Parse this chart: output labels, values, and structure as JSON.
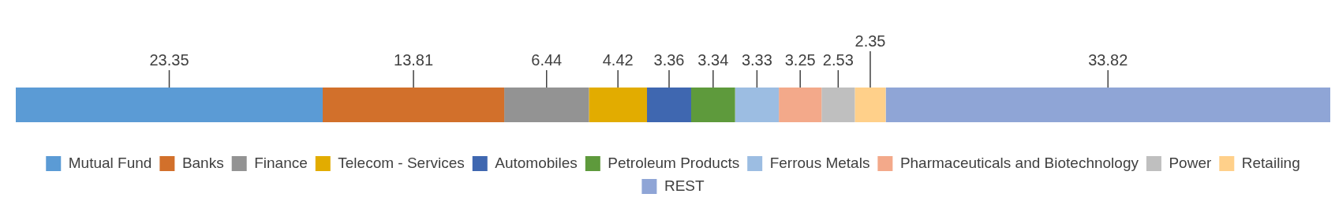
{
  "chart_data": {
    "type": "bar",
    "orientation": "horizontal",
    "stacked": true,
    "data_labels": true,
    "legend": "bottom",
    "categories": [
      null
    ],
    "series": [
      {
        "name": "Mutual Fund",
        "color": "#5b9bd5",
        "values": [
          23.35
        ]
      },
      {
        "name": "Banks",
        "color": "#d2702b",
        "values": [
          13.81
        ]
      },
      {
        "name": "Finance",
        "color": "#939393",
        "values": [
          6.44
        ]
      },
      {
        "name": "Telecom - Services",
        "color": "#e2ac00",
        "values": [
          4.42
        ]
      },
      {
        "name": "Automobiles",
        "color": "#3f67b0",
        "values": [
          3.36
        ]
      },
      {
        "name": "Petroleum Products",
        "color": "#5e9a3c",
        "values": [
          3.34
        ]
      },
      {
        "name": "Ferrous Metals",
        "color": "#9cbde2",
        "values": [
          3.33
        ]
      },
      {
        "name": "Pharmaceuticals and Biotechnology",
        "color": "#f3a98a",
        "values": [
          3.25
        ]
      },
      {
        "name": "Power",
        "color": "#bfbfbf",
        "values": [
          2.53
        ]
      },
      {
        "name": "Retailing",
        "color": "#ffd08a",
        "values": [
          2.35
        ]
      },
      {
        "name": "REST",
        "color": "#8fa5d6",
        "values": [
          33.82
        ]
      }
    ]
  }
}
